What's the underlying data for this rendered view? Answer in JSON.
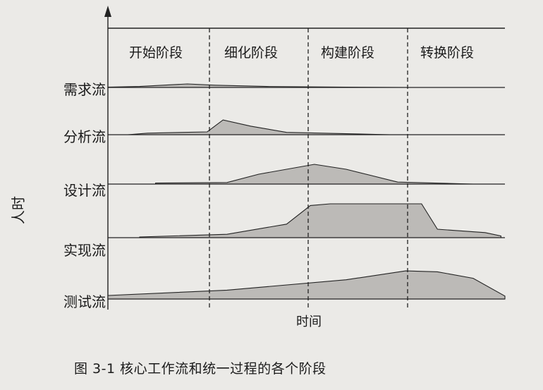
{
  "phases": [
    "开始阶段",
    "细化阶段",
    "构建阶段",
    "转换阶段"
  ],
  "streams": [
    {
      "name": "需求流",
      "profile": [
        [
          0,
          0.02
        ],
        [
          0.08,
          0.08
        ],
        [
          0.2,
          0.28
        ],
        [
          0.27,
          0.18
        ],
        [
          0.4,
          0.08
        ],
        [
          0.6,
          0.02
        ],
        [
          0.75,
          0
        ]
      ]
    },
    {
      "name": "分析流",
      "profile": [
        [
          0.05,
          0
        ],
        [
          0.1,
          0.1
        ],
        [
          0.25,
          0.18
        ],
        [
          0.29,
          0.95
        ],
        [
          0.36,
          0.55
        ],
        [
          0.45,
          0.15
        ],
        [
          0.63,
          0.05
        ],
        [
          0.71,
          0
        ]
      ]
    },
    {
      "name": "设计流",
      "profile": [
        [
          0.12,
          0.05
        ],
        [
          0.3,
          0.08
        ],
        [
          0.38,
          0.5
        ],
        [
          0.52,
          1.0
        ],
        [
          0.6,
          0.75
        ],
        [
          0.66,
          0.45
        ],
        [
          0.73,
          0.1
        ],
        [
          0.92,
          0
        ]
      ]
    },
    {
      "name": "实现流",
      "profile": [
        [
          0.08,
          0.02
        ],
        [
          0.3,
          0.1
        ],
        [
          0.45,
          0.4
        ],
        [
          0.51,
          0.95
        ],
        [
          0.56,
          1.0
        ],
        [
          0.79,
          1.0
        ],
        [
          0.83,
          0.25
        ],
        [
          0.95,
          0.15
        ],
        [
          0.99,
          0.05
        ]
      ]
    },
    {
      "name": "测试流",
      "profile": [
        [
          0,
          0.12
        ],
        [
          0.3,
          0.3
        ],
        [
          0.6,
          0.65
        ],
        [
          0.75,
          0.95
        ],
        [
          0.83,
          0.92
        ],
        [
          0.92,
          0.7
        ],
        [
          1.0,
          0.1
        ]
      ]
    }
  ],
  "axis": {
    "y_label": "人时",
    "x_label": "时间"
  },
  "caption": "图 3-1   核心工作流和统一过程的各个阶段",
  "colors": {
    "fill": "#bcbab7",
    "line": "#222222",
    "page": "#ebeae7"
  }
}
